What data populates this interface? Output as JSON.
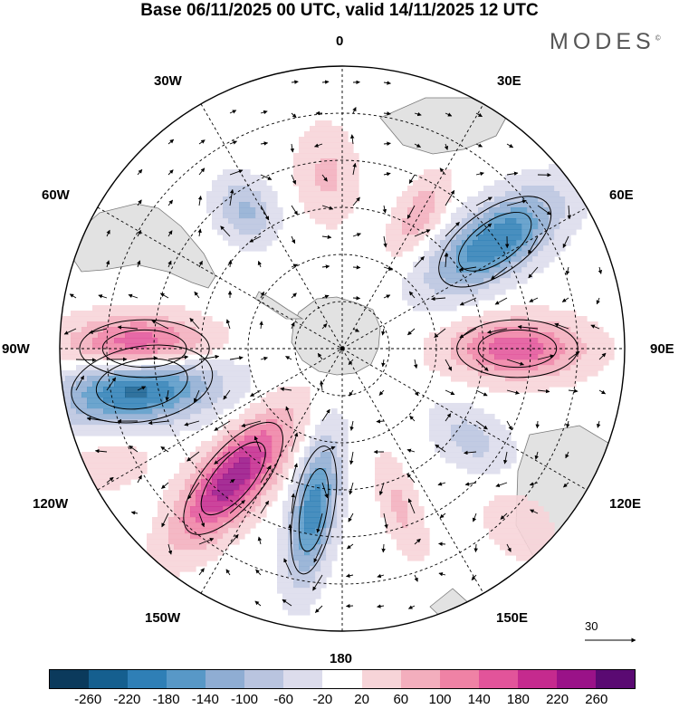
{
  "title": "Base 06/11/2025 00 UTC, valid 14/11/2025 12 UTC",
  "logo": "MODES",
  "logo_mark": "©",
  "lon_labels": {
    "l0": "0",
    "l30w": "30W",
    "l30e": "30E",
    "l60w": "60W",
    "l60e": "60E",
    "l90w": "90W",
    "l90e": "90E",
    "l120w": "120W",
    "l120e": "120E",
    "l150w": "150W",
    "l150e": "150E",
    "l180": "180"
  },
  "reference_vector": "30",
  "colorbar": {
    "colors": [
      "#0b3a5c",
      "#155f8f",
      "#2f7fb6",
      "#5898c7",
      "#8fadd3",
      "#b9c4df",
      "#dcdcec",
      "#ffffff",
      "#f7d4d8",
      "#f3aebd",
      "#ef82a5",
      "#e2549a",
      "#c52a8e",
      "#9a1288",
      "#5a0a72"
    ],
    "ticks": [
      "-260",
      "-220",
      "-180",
      "-140",
      "-100",
      "-60",
      "-20",
      "20",
      "60",
      "100",
      "140",
      "180",
      "220",
      "260"
    ]
  },
  "anomalies": [
    {
      "name": "neg",
      "lon": -100,
      "r": 0.72,
      "amp": -270,
      "len": 0.33,
      "wid": 0.13
    },
    {
      "name": "pos",
      "lon": -90,
      "r": 0.7,
      "amp": 250,
      "len": 0.3,
      "wid": 0.1
    },
    {
      "name": "pos",
      "lon": -140,
      "r": 0.6,
      "amp": 250,
      "len": 0.32,
      "wid": 0.1
    },
    {
      "name": "neg",
      "lon": -170,
      "r": 0.58,
      "amp": -210,
      "len": 0.3,
      "wid": 0.07
    },
    {
      "name": "pos",
      "lon": 90,
      "r": 0.62,
      "amp": 170,
      "len": 0.28,
      "wid": 0.1
    },
    {
      "name": "neg",
      "lon": 55,
      "r": 0.66,
      "amp": -220,
      "len": 0.3,
      "wid": 0.11
    },
    {
      "name": "pos",
      "lon": 30,
      "r": 0.55,
      "amp": 90,
      "len": 0.18,
      "wid": 0.07
    },
    {
      "name": "pos",
      "lon": -5,
      "r": 0.62,
      "amp": 70,
      "len": 0.2,
      "wid": 0.1
    },
    {
      "name": "neg",
      "lon": -35,
      "r": 0.6,
      "amp": -110,
      "len": 0.14,
      "wid": 0.09
    },
    {
      "name": "neg",
      "lon": 125,
      "r": 0.56,
      "amp": -80,
      "len": 0.18,
      "wid": 0.09
    },
    {
      "name": "pos",
      "lon": 160,
      "r": 0.6,
      "amp": 70,
      "len": 0.22,
      "wid": 0.06
    },
    {
      "name": "pos",
      "lon": -115,
      "r": 0.9,
      "amp": 45,
      "len": 0.25,
      "wid": 0.12
    },
    {
      "name": "pos",
      "lon": 135,
      "r": 0.88,
      "amp": 40,
      "len": 0.2,
      "wid": 0.12
    }
  ]
}
